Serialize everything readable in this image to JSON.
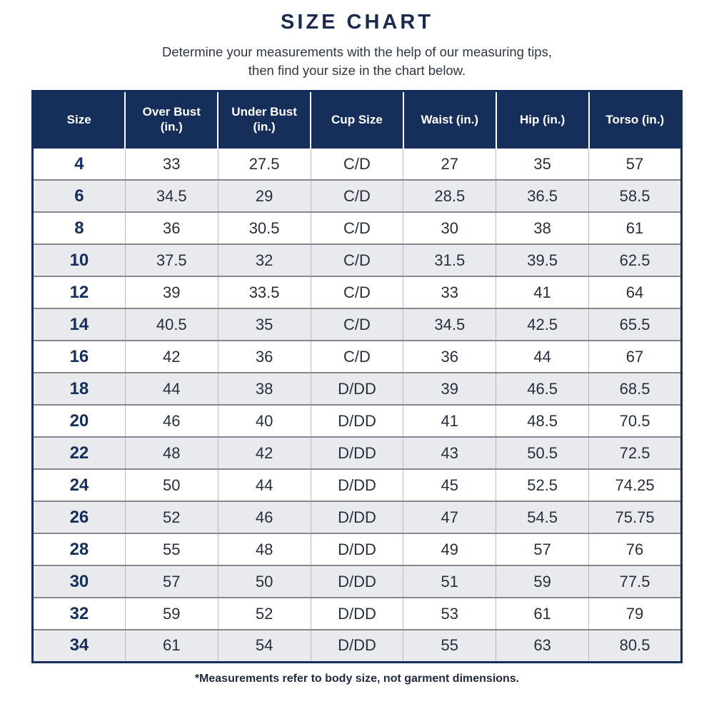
{
  "page": {
    "title": "SIZE CHART",
    "subtitle_line1": "Determine your measurements with the help of our measuring tips,",
    "subtitle_line2": "then find your size in the chart below.",
    "footnote": "*Measurements refer to body size, not garment dimensions."
  },
  "colors": {
    "title_text": "#1b2a4e",
    "header_bg": "#152f5a",
    "header_text": "#ffffff",
    "row_alt_bg": "#e8eaee",
    "size_column_text": "#152f5a",
    "cell_text": "#272e3c",
    "row_divider": "#84878d",
    "cell_divider": "#b7bac0"
  },
  "chart_data": {
    "type": "table",
    "title": "SIZE CHART",
    "columns": [
      "Size",
      "Over Bust (in.)",
      "Under Bust (in.)",
      "Cup Size",
      "Waist (in.)",
      "Hip (in.)",
      "Torso (in.)"
    ],
    "rows": [
      [
        "4",
        "33",
        "27.5",
        "C/D",
        "27",
        "35",
        "57"
      ],
      [
        "6",
        "34.5",
        "29",
        "C/D",
        "28.5",
        "36.5",
        "58.5"
      ],
      [
        "8",
        "36",
        "30.5",
        "C/D",
        "30",
        "38",
        "61"
      ],
      [
        "10",
        "37.5",
        "32",
        "C/D",
        "31.5",
        "39.5",
        "62.5"
      ],
      [
        "12",
        "39",
        "33.5",
        "C/D",
        "33",
        "41",
        "64"
      ],
      [
        "14",
        "40.5",
        "35",
        "C/D",
        "34.5",
        "42.5",
        "65.5"
      ],
      [
        "16",
        "42",
        "36",
        "C/D",
        "36",
        "44",
        "67"
      ],
      [
        "18",
        "44",
        "38",
        "D/DD",
        "39",
        "46.5",
        "68.5"
      ],
      [
        "20",
        "46",
        "40",
        "D/DD",
        "41",
        "48.5",
        "70.5"
      ],
      [
        "22",
        "48",
        "42",
        "D/DD",
        "43",
        "50.5",
        "72.5"
      ],
      [
        "24",
        "50",
        "44",
        "D/DD",
        "45",
        "52.5",
        "74.25"
      ],
      [
        "26",
        "52",
        "46",
        "D/DD",
        "47",
        "54.5",
        "75.75"
      ],
      [
        "28",
        "55",
        "48",
        "D/DD",
        "49",
        "57",
        "76"
      ],
      [
        "30",
        "57",
        "50",
        "D/DD",
        "51",
        "59",
        "77.5"
      ],
      [
        "32",
        "59",
        "52",
        "D/DD",
        "53",
        "61",
        "79"
      ],
      [
        "34",
        "61",
        "54",
        "D/DD",
        "55",
        "63",
        "80.5"
      ]
    ]
  }
}
